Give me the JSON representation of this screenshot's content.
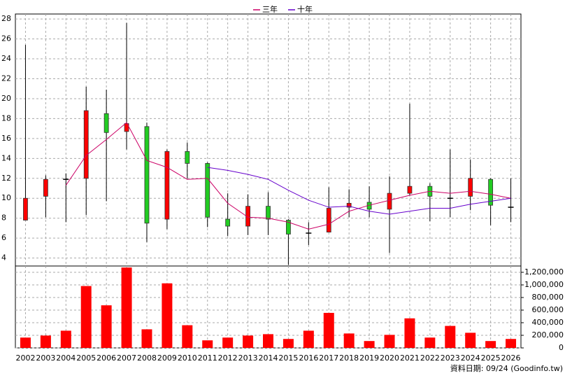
{
  "chart_data": [
    {
      "type": "candlestick",
      "categories": [
        "2002",
        "2003",
        "2004",
        "2005",
        "2006",
        "2007",
        "2008",
        "2009",
        "2010",
        "2011",
        "2012",
        "2013",
        "2014",
        "2015",
        "2016",
        "2017",
        "2018",
        "2019",
        "2020",
        "2021",
        "2022",
        "2023",
        "2024",
        "2025",
        "2026"
      ],
      "open": [
        7.8,
        10.2,
        11.8,
        12.0,
        18.5,
        16.7,
        17.2,
        7.9,
        14.7,
        13.5,
        7.9,
        7.2,
        9.2,
        7.8,
        6.6,
        6.6,
        9.1,
        9.6,
        8.9,
        10.5,
        11.2,
        10.0,
        10.2,
        11.9,
        9.1
      ],
      "high": [
        25.4,
        12.3,
        12.5,
        21.2,
        20.9,
        27.6,
        17.6,
        14.9,
        15.6,
        13.6,
        10.5,
        10.4,
        10.6,
        7.9,
        7.6,
        11.1,
        10.9,
        11.2,
        12.2,
        19.5,
        11.5,
        14.9,
        13.9,
        12.0,
        12.0
      ],
      "low": [
        7.8,
        8.1,
        7.6,
        8.3,
        9.7,
        14.9,
        5.6,
        6.9,
        12.0,
        7.1,
        6.2,
        6.3,
        6.3,
        3.3,
        5.3,
        6.6,
        8.1,
        8.1,
        4.5,
        10.3,
        7.7,
        8.1,
        8.8,
        7.3,
        7.6
      ],
      "close": [
        10.0,
        11.9,
        11.9,
        18.8,
        16.6,
        17.5,
        7.5,
        14.7,
        13.5,
        8.1,
        7.2,
        9.2,
        7.9,
        6.4,
        6.5,
        9.0,
        9.5,
        8.9,
        10.5,
        11.2,
        10.2,
        10.0,
        12.0,
        9.3,
        9.1
      ],
      "up_color": "#ff0000",
      "down_color": "#22cc22",
      "series": [
        {
          "name": "三年",
          "color": "#cc0066",
          "values": [
            null,
            null,
            11.3,
            14.3,
            15.9,
            17.6,
            13.8,
            13.1,
            11.9,
            12.0,
            9.5,
            8.1,
            8.0,
            7.6,
            6.9,
            7.4,
            8.7,
            9.3,
            9.8,
            10.3,
            10.7,
            10.5,
            10.7,
            10.4,
            10.0
          ]
        },
        {
          "name": "十年",
          "color": "#6600cc",
          "values": [
            null,
            null,
            null,
            null,
            null,
            null,
            null,
            null,
            null,
            13.1,
            12.8,
            12.4,
            11.9,
            10.8,
            9.8,
            9.1,
            9.2,
            8.7,
            8.4,
            8.7,
            9.0,
            9.0,
            9.4,
            9.7,
            10.0
          ]
        }
      ],
      "ylim": [
        3.2,
        28.5
      ],
      "yticks": [
        4,
        6,
        8,
        10,
        12,
        14,
        16,
        18,
        20,
        22,
        24,
        26,
        28
      ],
      "grid": true
    },
    {
      "type": "bar",
      "values": [
        164000,
        196000,
        273000,
        982000,
        676000,
        1276000,
        295000,
        1025000,
        360000,
        120000,
        164000,
        196000,
        218000,
        142000,
        273000,
        556000,
        229000,
        109000,
        207000,
        469000,
        164000,
        349000,
        240000,
        109000,
        142000
      ],
      "color": "#ff0000",
      "ylim": [
        0,
        1300000
      ],
      "yticks": [
        0,
        {
          "value": 200000,
          "label": "200,000"
        },
        {
          "value": 400000,
          "label": "400,000"
        },
        {
          "value": 600000,
          "label": "600,000"
        },
        {
          "value": 800000,
          "label": "800,000"
        },
        {
          "value": 1000000,
          "label": "1,000,000"
        },
        {
          "value": 1200000,
          "label": "1,200,000"
        }
      ],
      "grid": true,
      "source": "資料日期: 09/24  (Goodinfo.tw)"
    }
  ]
}
